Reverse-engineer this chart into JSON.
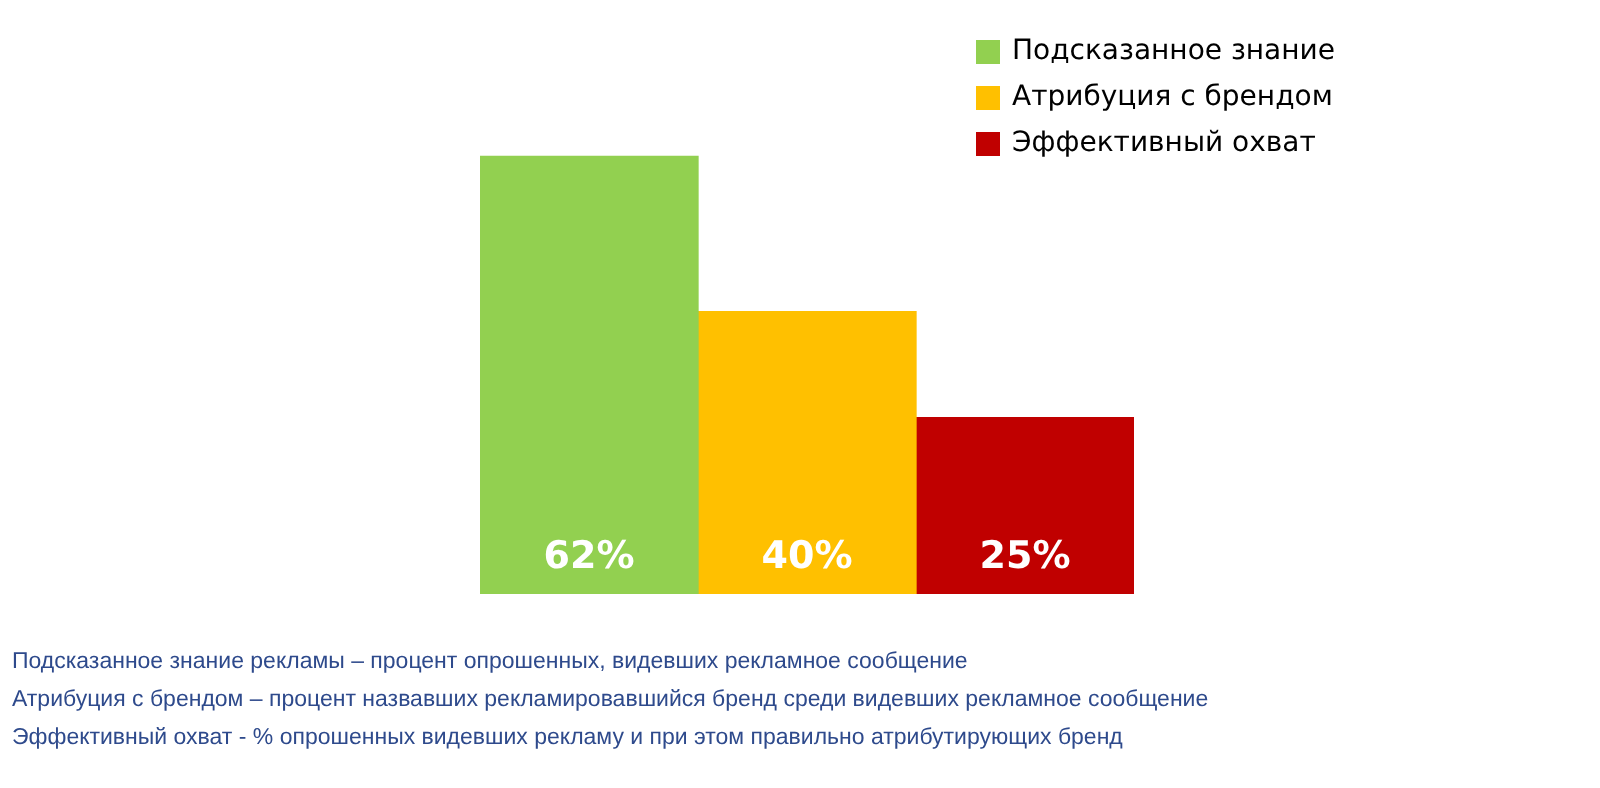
{
  "chart_data": {
    "type": "bar",
    "categories": [
      null
    ],
    "series": [
      {
        "name": "Подсказанное знание",
        "color": "#92d050",
        "values": [
          62
        ],
        "value_labels": [
          "62%"
        ]
      },
      {
        "name": "Атрибуция с брендом",
        "color": "#ffc000",
        "values": [
          40
        ],
        "value_labels": [
          "40%"
        ]
      },
      {
        "name": "Эффективный охват",
        "color": "#c00000",
        "values": [
          25
        ],
        "value_labels": [
          "25%"
        ]
      }
    ],
    "legend": "top right",
    "tick_labels": false,
    "annotations": [
      "Подсказанное знание рекламы – процент опрошенных, видевших рекламное сообщение",
      "Атрибуция с брендом – процент назвавших рекламировавшийся бренд среди видевших рекламное сообщение",
      "Эффективный охват - % опрошенных видевших рекламу и при этом правильно атрибутирующих бренд"
    ]
  }
}
